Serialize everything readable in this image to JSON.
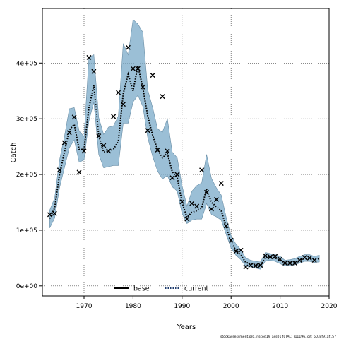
{
  "chart_data": {
    "type": "line",
    "title": "",
    "xlabel": "Years",
    "ylabel": "Catch",
    "xlim": [
      1961.5,
      2020
    ],
    "ylim": [
      -18000,
      498000
    ],
    "x_ticks": [
      1970,
      1980,
      1990,
      2000,
      2010,
      2020
    ],
    "y_ticks": [
      0,
      100000,
      200000,
      300000,
      400000
    ],
    "x_tick_labels": [
      "1970",
      "1980",
      "1990",
      "2000",
      "2010",
      "2020"
    ],
    "y_tick_labels": [
      "0e+00",
      "1e+05",
      "2e+05",
      "3e+05",
      "4e+05"
    ],
    "grid": true,
    "legend_position": "bottom-center",
    "legend": [
      {
        "label": "base",
        "style": "solid",
        "color": "#000000"
      },
      {
        "label": "current",
        "style": "dotted",
        "color": "#1f3c6e"
      }
    ],
    "band_color": "#7aaac8",
    "observed": {
      "years": [
        1963,
        1964,
        1965,
        1966,
        1967,
        1968,
        1969,
        1970,
        1971,
        1972,
        1973,
        1974,
        1975,
        1976,
        1977,
        1978,
        1979,
        1980,
        1981,
        1982,
        1983,
        1984,
        1985,
        1986,
        1987,
        1988,
        1989,
        1990,
        1991,
        1992,
        1993,
        1994,
        1995,
        1996,
        1997,
        1998,
        1999,
        2000,
        2001,
        2002,
        2003,
        2004,
        2005,
        2006,
        2007,
        2008,
        2009,
        2010,
        2011,
        2012,
        2013,
        2014,
        2015,
        2016,
        2017
      ],
      "values": [
        128000,
        130000,
        208000,
        257000,
        275000,
        303000,
        204000,
        242000,
        410000,
        385000,
        269000,
        252000,
        242000,
        304000,
        347000,
        326000,
        428000,
        390000,
        390000,
        357000,
        279000,
        378000,
        244000,
        340000,
        242000,
        194000,
        200000,
        151000,
        120000,
        148000,
        143000,
        208000,
        168000,
        138000,
        155000,
        184000,
        108000,
        82000,
        62000,
        64000,
        34000,
        37000,
        36000,
        37000,
        54000,
        52000,
        53000,
        48000,
        41000,
        41000,
        41000,
        46000,
        51000,
        50000,
        46000
      ]
    },
    "series": [
      {
        "name": "current",
        "x": [
          1963,
          1964,
          1965,
          1966,
          1967,
          1968,
          1969,
          1970,
          1971,
          1972,
          1973,
          1974,
          1975,
          1976,
          1977,
          1978,
          1979,
          1980,
          1981,
          1982,
          1983,
          1984,
          1985,
          1986,
          1987,
          1988,
          1989,
          1990,
          1991,
          1992,
          1993,
          1994,
          1995,
          1996,
          1997,
          1998,
          1999,
          2000,
          2001,
          2002,
          2003,
          2004,
          2005,
          2006,
          2007,
          2008,
          2009,
          2010,
          2011,
          2012,
          2013,
          2014,
          2015,
          2016,
          2017,
          2018
        ],
        "y": [
          121000,
          140000,
          200000,
          240000,
          280000,
          290000,
          245000,
          245000,
          320000,
          360000,
          270000,
          240000,
          242000,
          245000,
          260000,
          345000,
          380000,
          350000,
          395000,
          355000,
          305000,
          270000,
          245000,
          230000,
          238000,
          205000,
          195000,
          150000,
          123000,
          132000,
          135000,
          140000,
          175000,
          150000,
          142000,
          135000,
          106000,
          78000,
          64000,
          55000,
          42000,
          40000,
          38000,
          36000,
          52000,
          52000,
          50000,
          46000,
          40000,
          41000,
          43000,
          46000,
          49000,
          49000,
          47000,
          49000
        ],
        "lower": [
          104000,
          122000,
          176000,
          212000,
          248000,
          262000,
          222000,
          226000,
          296000,
          330000,
          236000,
          212000,
          214000,
          216000,
          216000,
          292000,
          292000,
          330000,
          342000,
          322000,
          266000,
          232000,
          206000,
          192000,
          198000,
          178000,
          170000,
          130000,
          112000,
          118000,
          120000,
          120000,
          148000,
          128000,
          124000,
          118000,
          92000,
          68000,
          55000,
          47000,
          35000,
          34000,
          32000,
          30000,
          45000,
          46000,
          44000,
          40000,
          36000,
          36000,
          38000,
          41000,
          44000,
          44000,
          42000,
          43000
        ],
        "upper": [
          136000,
          158000,
          226000,
          268000,
          318000,
          320000,
          278000,
          268000,
          410000,
          415000,
          302000,
          272000,
          285000,
          287000,
          305000,
          435000,
          415000,
          478000,
          470000,
          455000,
          352000,
          320000,
          282000,
          276000,
          300000,
          240000,
          230000,
          180000,
          143000,
          170000,
          180000,
          185000,
          236000,
          193000,
          176000,
          163000,
          123000,
          90000,
          75000,
          65000,
          50000,
          46000,
          44000,
          43000,
          60000,
          58000,
          56000,
          53000,
          46000,
          47000,
          49000,
          53000,
          56000,
          56000,
          53000,
          55000
        ]
      }
    ]
  },
  "footer": "stockassessment.org, nscod19_ass01 fcTAC, r11196, git: 503cf91af157"
}
